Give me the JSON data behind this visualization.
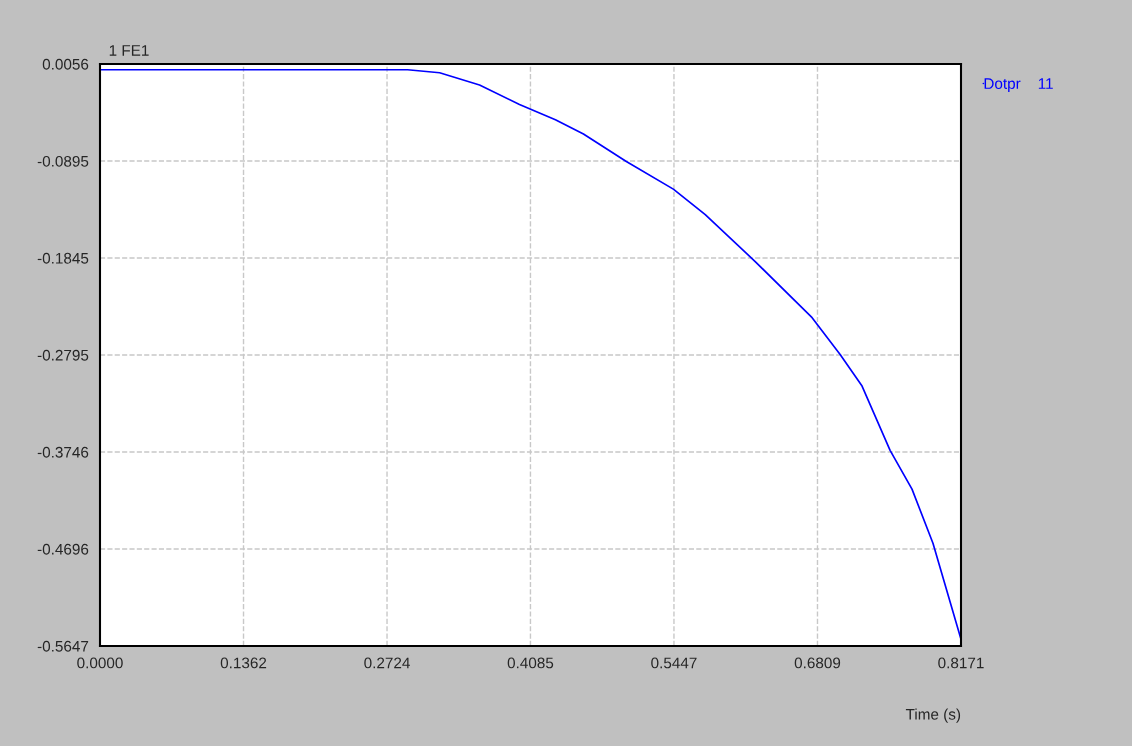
{
  "chart_data": {
    "type": "line",
    "title": "1 FE1",
    "xlabel": "Time (s)",
    "x": [
      0,
      0.2919,
      0.3223,
      0.3602,
      0.3981,
      0.4322,
      0.4588,
      0.4995,
      0.5441,
      0.5744,
      0.6218,
      0.6758,
      0.7024,
      0.7232,
      0.7498,
      0.7706,
      0.7905,
      0.8171
    ],
    "series": [
      {
        "name": "Dotpr    11",
        "color": "#0000ff",
        "values": [
          0.0,
          0.0,
          -0.003,
          -0.015,
          -0.034,
          -0.049,
          -0.063,
          -0.09,
          -0.117,
          -0.142,
          -0.188,
          -0.243,
          -0.279,
          -0.31,
          -0.373,
          -0.411,
          -0.464,
          -0.558
        ]
      }
    ],
    "xlim": [
      0,
      0.8171
    ],
    "ylim": [
      -0.5647,
      0.0056
    ],
    "xticks": [
      {
        "value": 0,
        "label": "0.0000"
      },
      0.1362,
      0.2724,
      0.4085,
      0.5447,
      0.6809,
      0.8171
    ],
    "yticks": [
      -0.5647,
      -0.4696,
      -0.3746,
      -0.2795,
      -0.1845,
      -0.0895,
      0.0056
    ],
    "grid": true,
    "legend": "right",
    "marker": "none",
    "line_style": "solid"
  }
}
